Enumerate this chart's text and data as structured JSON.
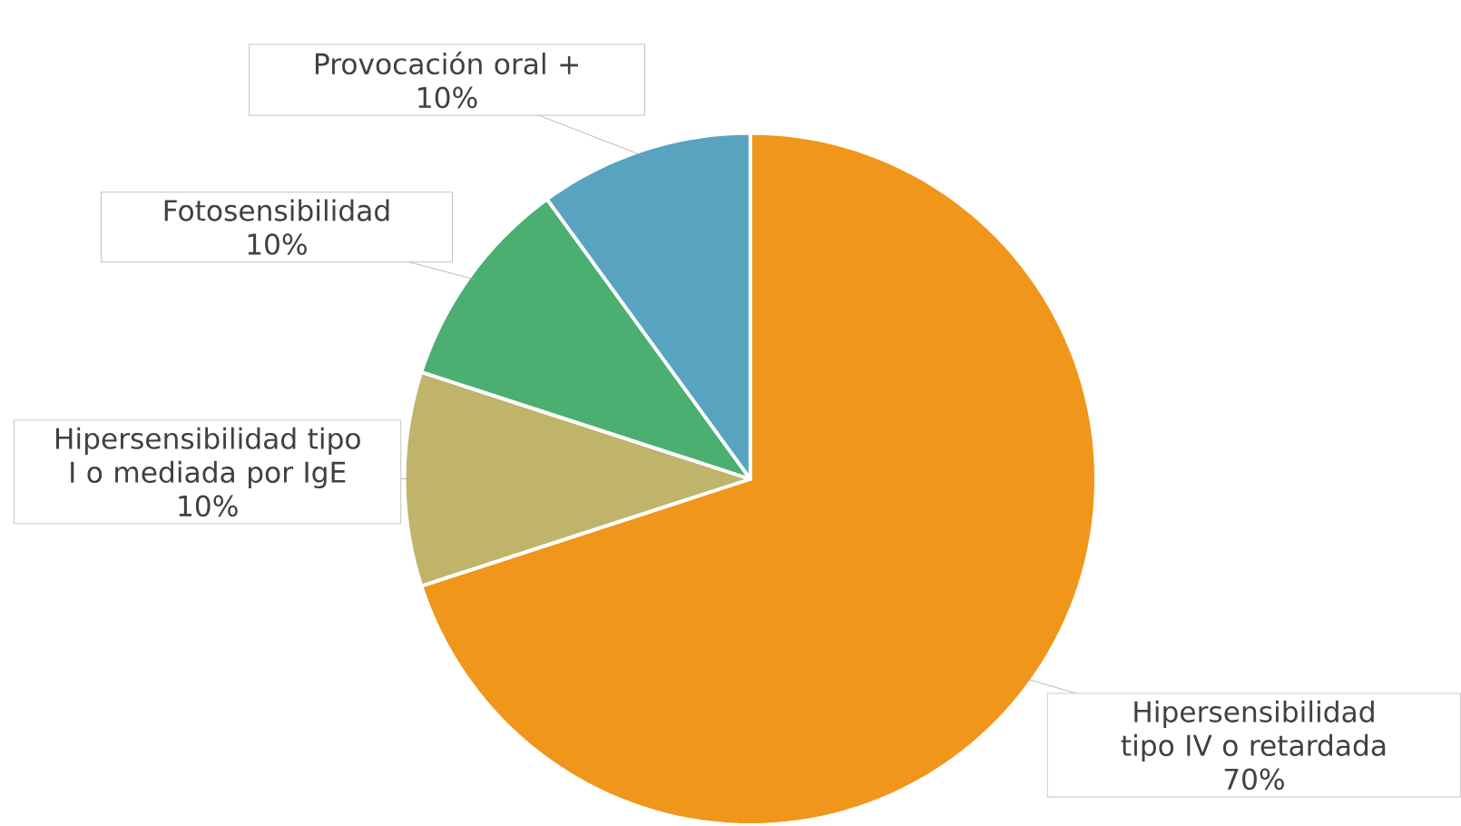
{
  "chart_data": {
    "type": "pie",
    "categories": [
      "Hipersensibilidad tipo IV o retardada",
      "Hipersensibilidad tipo I o mediada por IgE",
      "Fotosensibilidad",
      "Provocación oral +"
    ],
    "values": [
      70,
      10,
      10,
      10
    ],
    "value_labels": [
      "70%",
      "10%",
      "10%",
      "10%"
    ],
    "colors": [
      "#f0961a",
      "#bfb46a",
      "#4caf72",
      "#58a4c0"
    ]
  }
}
